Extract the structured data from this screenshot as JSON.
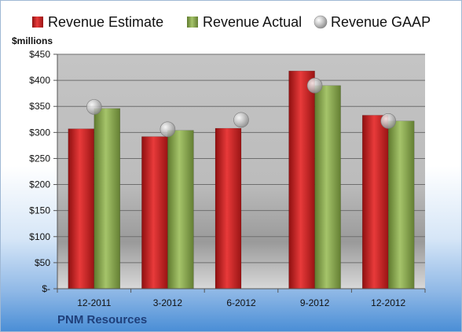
{
  "chart_data": {
    "type": "bar",
    "title": "",
    "company": "PNM Resources",
    "unit_label": "$millions",
    "categories": [
      "12-2011",
      "3-2012",
      "6-2012",
      "9-2012",
      "12-2012"
    ],
    "series": [
      {
        "name": "Revenue Estimate",
        "kind": "bar",
        "color": "#d42a2a",
        "values": [
          307,
          292,
          308,
          418,
          333
        ]
      },
      {
        "name": "Revenue Actual",
        "kind": "bar",
        "color": "#8aaa4e",
        "values": [
          346,
          304,
          null,
          390,
          322
        ]
      },
      {
        "name": "Revenue GAAP",
        "kind": "marker",
        "color": "#b8b8b8",
        "values": [
          349,
          306,
          324,
          390,
          322
        ]
      }
    ],
    "ylim": [
      0,
      450
    ],
    "yticks": [
      0,
      50,
      100,
      150,
      200,
      250,
      300,
      350,
      400,
      450
    ],
    "ytick_labels": [
      "$-",
      "$50",
      "$100",
      "$150",
      "$200",
      "$250",
      "$300",
      "$350",
      "$400",
      "$450"
    ],
    "grid": true,
    "legend_position": "top"
  }
}
